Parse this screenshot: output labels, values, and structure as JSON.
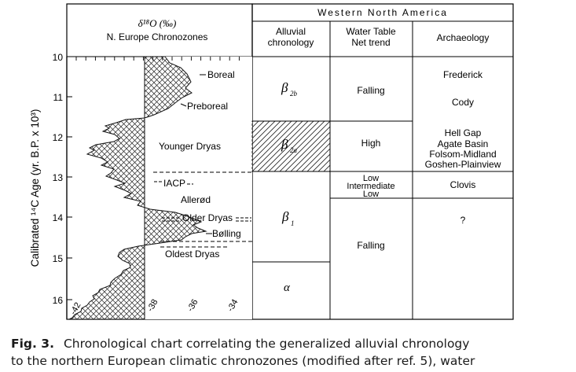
{
  "header": {
    "region": "Western North America",
    "delta_label": "δ¹⁸O (‰)",
    "chronozone_label": "N. Europe Chronozones",
    "col_alluvial": [
      "Alluvial",
      "chronology"
    ],
    "col_water": [
      "Water Table",
      "Net trend"
    ],
    "col_arch": "Archaeology"
  },
  "y_axis": {
    "label": "Calibrated ¹⁴C Age (yr. B.P. x 10³)",
    "ticks": [
      "10",
      "11",
      "12",
      "13",
      "14",
      "15",
      "16"
    ]
  },
  "x_axis": {
    "ticks": [
      "-42",
      "-38",
      "-36",
      "-34"
    ]
  },
  "chronozones": {
    "boreal": "Boreal",
    "preboreal": "Preboreal",
    "younger_dryas": "Younger Dryas",
    "iacp": "IACP",
    "allerod": "Allerød",
    "older_dryas": "Older Dryas",
    "bolling": "Bølling",
    "oldest_dryas": "Oldest Dryas"
  },
  "alluvial": {
    "b2b": {
      "sym": "β",
      "sub": "2b"
    },
    "b2a": {
      "sym": "β",
      "sub": "2a"
    },
    "b1": {
      "sym": "β",
      "sub": "1"
    },
    "a": {
      "sym": "α"
    }
  },
  "water": {
    "falling_1": "Falling",
    "high": "High",
    "low_1": "Low",
    "intermediate": "Intermediate",
    "low_2": "Low",
    "falling_2": "Falling"
  },
  "archaeology": {
    "frederick": "Frederick",
    "cody": "Cody",
    "hell_gap": "Hell Gap",
    "agate_basin": "Agate Basin",
    "folsom_midland": "Folsom-Midland",
    "goshen": "Goshen-Plainview",
    "clovis": "Clovis",
    "unknown": "?"
  },
  "caption": {
    "label": "Fig. 3.",
    "line1": "Chronological chart correlating the generalized alluvial chronology",
    "line2": "to the northern European climatic chronozones (modified after ref. 5), water"
  }
}
